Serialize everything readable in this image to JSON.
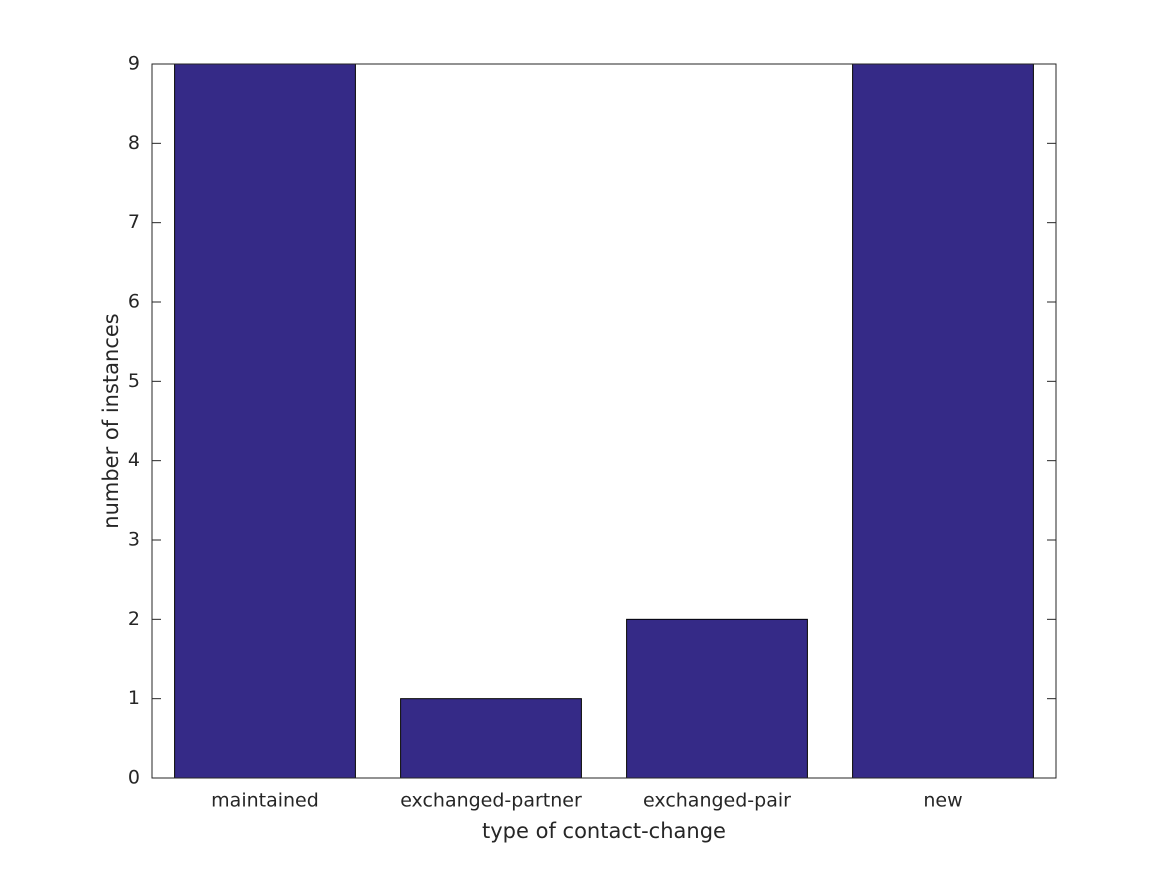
{
  "chart_data": {
    "type": "bar",
    "categories": [
      "maintained",
      "exchanged-partner",
      "exchanged-pair",
      "new"
    ],
    "values": [
      9,
      1,
      2,
      9
    ],
    "color": "#352a87",
    "xlabel": "type of contact-change",
    "ylabel": "number of instances",
    "ylim": [
      0,
      9
    ],
    "yticks": [
      0,
      1,
      2,
      3,
      4,
      5,
      6,
      7,
      8,
      9
    ],
    "grid": false
  }
}
